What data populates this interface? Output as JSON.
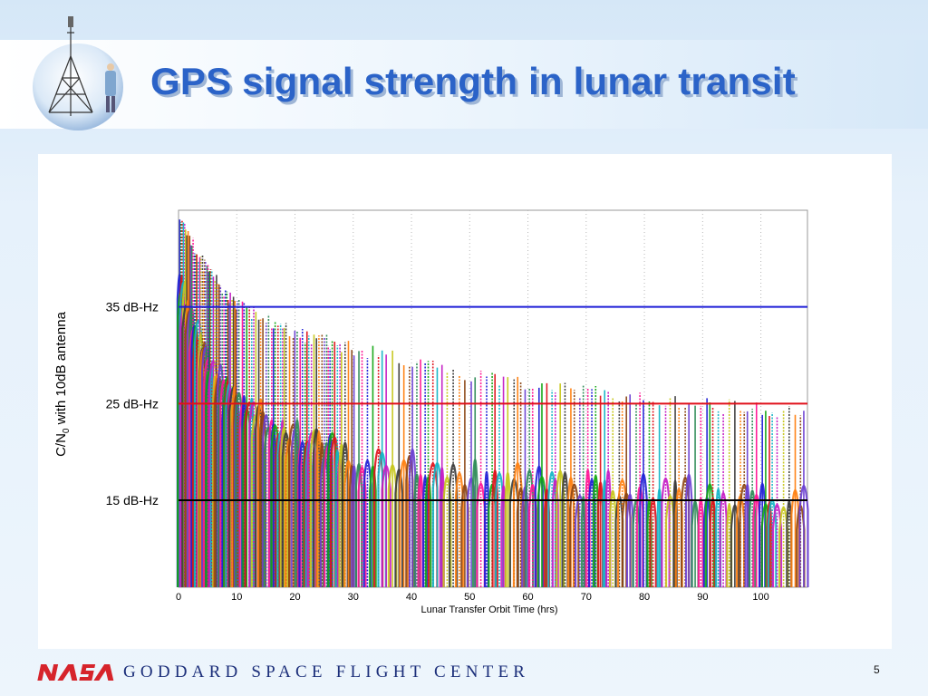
{
  "slide": {
    "title": "GPS signal strength in lunar transit",
    "footer": "GODDARD SPACE FLIGHT CENTER",
    "page_number": "5",
    "logo_text": "NASA"
  },
  "colors": {
    "title": "#2b63c8",
    "footer": "#1c2f7a",
    "nasa": "#d6242b",
    "line_35": "#1f1fd6",
    "line_25": "#e0101a",
    "line_15": "#000000"
  },
  "chart_data": {
    "type": "line",
    "xlabel": "Lunar Transfer Orbit Time (hrs)",
    "ylabel": "C/N",
    "ylabel_sub": "0",
    "ylabel_suffix": " with 10dB antenna",
    "xlim": [
      0,
      108
    ],
    "ylim": [
      6,
      45
    ],
    "x_ticks": [
      "0",
      "10",
      "20",
      "30",
      "40",
      "50",
      "60",
      "70",
      "80",
      "90",
      "100"
    ],
    "x_tick_values": [
      0,
      10,
      20,
      30,
      40,
      50,
      60,
      70,
      80,
      90,
      100
    ],
    "grid": true,
    "reference_lines": [
      {
        "label": "35 dB-Hz",
        "y": 35,
        "color": "#1f1fd6"
      },
      {
        "label": "25 dB-Hz",
        "y": 25,
        "color": "#e0101a"
      },
      {
        "label": "15 dB-Hz",
        "y": 15,
        "color": "#000000"
      }
    ],
    "envelopes": {
      "sidelobe_peak": [
        [
          0,
          45
        ],
        [
          5,
          39.5
        ],
        [
          10,
          36
        ],
        [
          20,
          33
        ],
        [
          30,
          31.5
        ],
        [
          40,
          30
        ],
        [
          50,
          28.8
        ],
        [
          60,
          27.8
        ],
        [
          70,
          27
        ],
        [
          80,
          26.3
        ],
        [
          90,
          25.7
        ],
        [
          100,
          25.2
        ],
        [
          108,
          24.8
        ]
      ],
      "mainlobe_peak": [
        [
          0,
          38
        ],
        [
          5,
          29
        ],
        [
          10,
          25
        ],
        [
          20,
          21.5
        ],
        [
          30,
          19.5
        ],
        [
          40,
          18.3
        ],
        [
          50,
          17.5
        ],
        [
          60,
          16.8
        ],
        [
          70,
          16.3
        ],
        [
          80,
          15.9
        ],
        [
          90,
          15.6
        ],
        [
          100,
          15.3
        ],
        [
          108,
          15.1
        ]
      ],
      "floor": [
        [
          0,
          6
        ],
        [
          108,
          6
        ]
      ]
    },
    "series_colors": [
      "#1f1fd6",
      "#11a611",
      "#e0101a",
      "#12b5c6",
      "#c41cc4",
      "#c7c71a",
      "#3b3b3b",
      "#ff7f0e",
      "#8b4513",
      "#6a3fd1",
      "#2e8b57",
      "#ff1493"
    ]
  }
}
